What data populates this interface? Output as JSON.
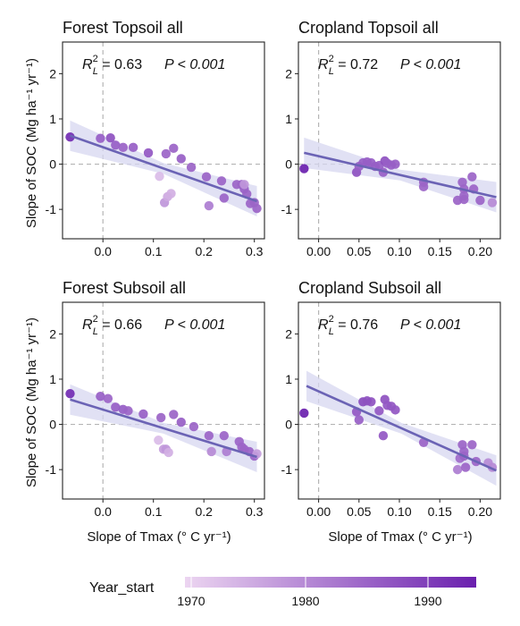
{
  "figure": {
    "ylabel": "Slope of SOC (Mg ha⁻¹ yr⁻¹)",
    "xlabel": "Slope of Tmax (° C yr⁻¹)",
    "legend": {
      "title": "Year_start",
      "ticks": [
        "1970",
        "1980",
        "1990"
      ],
      "range": [
        1966,
        1995
      ],
      "color_low": "#ecd5f1",
      "color_high": "#6a1fae"
    }
  },
  "chart_data": [
    {
      "type": "scatter",
      "title": "Forest Topsoil all",
      "r2_label": "0.63",
      "p_label": "P < 0.001",
      "xlim": [
        -0.08,
        0.32
      ],
      "ylim": [
        -1.65,
        2.7
      ],
      "xticks": [
        "0.0",
        "0.1",
        "0.2",
        "0.3"
      ],
      "yticks": [
        "-1",
        "0",
        "1",
        "2"
      ],
      "fit": {
        "x": [
          -0.065,
          0.305
        ],
        "y": [
          0.63,
          -0.82
        ]
      },
      "points": [
        {
          "x": -0.065,
          "y": 0.6,
          "year": 1993
        },
        {
          "x": -0.005,
          "y": 0.57,
          "year": 1985
        },
        {
          "x": 0.015,
          "y": 0.58,
          "year": 1987
        },
        {
          "x": 0.025,
          "y": 0.42,
          "year": 1985
        },
        {
          "x": 0.04,
          "y": 0.37,
          "year": 1984
        },
        {
          "x": 0.06,
          "y": 0.37,
          "year": 1985
        },
        {
          "x": 0.09,
          "y": 0.25,
          "year": 1986
        },
        {
          "x": 0.112,
          "y": -0.27,
          "year": 1970
        },
        {
          "x": 0.122,
          "y": -0.85,
          "year": 1976
        },
        {
          "x": 0.125,
          "y": 0.23,
          "year": 1984
        },
        {
          "x": 0.128,
          "y": -0.72,
          "year": 1973
        },
        {
          "x": 0.135,
          "y": -0.65,
          "year": 1972
        },
        {
          "x": 0.14,
          "y": 0.35,
          "year": 1984
        },
        {
          "x": 0.155,
          "y": 0.12,
          "year": 1985
        },
        {
          "x": 0.175,
          "y": -0.07,
          "year": 1984
        },
        {
          "x": 0.205,
          "y": -0.28,
          "year": 1984
        },
        {
          "x": 0.21,
          "y": -0.92,
          "year": 1980
        },
        {
          "x": 0.235,
          "y": -0.37,
          "year": 1984
        },
        {
          "x": 0.24,
          "y": -0.75,
          "year": 1984
        },
        {
          "x": 0.265,
          "y": -0.45,
          "year": 1984
        },
        {
          "x": 0.275,
          "y": -0.45,
          "year": 1984
        },
        {
          "x": 0.28,
          "y": -0.55,
          "year": 1985
        },
        {
          "x": 0.28,
          "y": -0.45,
          "year": 1976
        },
        {
          "x": 0.285,
          "y": -0.66,
          "year": 1984
        },
        {
          "x": 0.292,
          "y": -0.87,
          "year": 1984
        },
        {
          "x": 0.3,
          "y": -0.85,
          "year": 1984
        },
        {
          "x": 0.305,
          "y": -0.98,
          "year": 1984
        }
      ]
    },
    {
      "type": "scatter",
      "title": "Cropland Topsoil all",
      "r2_label": "0.72",
      "p_label": "P < 0.001",
      "xlim": [
        -0.025,
        0.225
      ],
      "ylim": [
        -1.65,
        2.7
      ],
      "xticks": [
        "0.00",
        "0.05",
        "0.10",
        "0.15",
        "0.20"
      ],
      "yticks": [
        "-1",
        "0",
        "1",
        "2"
      ],
      "fit": {
        "x": [
          -0.018,
          0.22
        ],
        "y": [
          0.25,
          -0.73
        ]
      },
      "points": [
        {
          "x": -0.018,
          "y": -0.1,
          "year": 1995
        },
        {
          "x": 0.047,
          "y": -0.18,
          "year": 1987
        },
        {
          "x": 0.05,
          "y": -0.05,
          "year": 1985
        },
        {
          "x": 0.055,
          "y": 0.03,
          "year": 1985
        },
        {
          "x": 0.06,
          "y": 0.05,
          "year": 1985
        },
        {
          "x": 0.065,
          "y": 0.03,
          "year": 1985
        },
        {
          "x": 0.07,
          "y": -0.05,
          "year": 1985
        },
        {
          "x": 0.075,
          "y": -0.03,
          "year": 1985
        },
        {
          "x": 0.08,
          "y": -0.18,
          "year": 1985
        },
        {
          "x": 0.082,
          "y": 0.07,
          "year": 1987
        },
        {
          "x": 0.085,
          "y": 0.02,
          "year": 1985
        },
        {
          "x": 0.09,
          "y": -0.02,
          "year": 1985
        },
        {
          "x": 0.095,
          "y": 0.0,
          "year": 1985
        },
        {
          "x": 0.13,
          "y": -0.4,
          "year": 1984
        },
        {
          "x": 0.13,
          "y": -0.5,
          "year": 1984
        },
        {
          "x": 0.172,
          "y": -0.8,
          "year": 1984
        },
        {
          "x": 0.178,
          "y": -0.4,
          "year": 1984
        },
        {
          "x": 0.18,
          "y": -0.55,
          "year": 1984
        },
        {
          "x": 0.18,
          "y": -0.7,
          "year": 1984
        },
        {
          "x": 0.18,
          "y": -0.78,
          "year": 1984
        },
        {
          "x": 0.19,
          "y": -0.28,
          "year": 1984
        },
        {
          "x": 0.192,
          "y": -0.55,
          "year": 1984
        },
        {
          "x": 0.2,
          "y": -0.8,
          "year": 1984
        },
        {
          "x": 0.215,
          "y": -0.85,
          "year": 1978
        }
      ]
    },
    {
      "type": "scatter",
      "title": "Forest Subsoil all",
      "r2_label": "0.66",
      "p_label": "P < 0.001",
      "xlim": [
        -0.08,
        0.32
      ],
      "ylim": [
        -1.65,
        2.7
      ],
      "xticks": [
        "0.0",
        "0.1",
        "0.2",
        "0.3"
      ],
      "yticks": [
        "-1",
        "0",
        "1",
        "2"
      ],
      "fit": {
        "x": [
          -0.065,
          0.305
        ],
        "y": [
          0.55,
          -0.72
        ]
      },
      "points": [
        {
          "x": -0.065,
          "y": 0.68,
          "year": 1993
        },
        {
          "x": -0.005,
          "y": 0.62,
          "year": 1985
        },
        {
          "x": 0.01,
          "y": 0.57,
          "year": 1984
        },
        {
          "x": 0.025,
          "y": 0.38,
          "year": 1985
        },
        {
          "x": 0.04,
          "y": 0.33,
          "year": 1985
        },
        {
          "x": 0.05,
          "y": 0.3,
          "year": 1984
        },
        {
          "x": 0.08,
          "y": 0.23,
          "year": 1985
        },
        {
          "x": 0.11,
          "y": -0.35,
          "year": 1970
        },
        {
          "x": 0.115,
          "y": 0.15,
          "year": 1984
        },
        {
          "x": 0.12,
          "y": -0.55,
          "year": 1975
        },
        {
          "x": 0.125,
          "y": -0.55,
          "year": 1976
        },
        {
          "x": 0.13,
          "y": -0.62,
          "year": 1972
        },
        {
          "x": 0.14,
          "y": 0.22,
          "year": 1984
        },
        {
          "x": 0.155,
          "y": 0.05,
          "year": 1985
        },
        {
          "x": 0.18,
          "y": -0.05,
          "year": 1984
        },
        {
          "x": 0.21,
          "y": -0.25,
          "year": 1984
        },
        {
          "x": 0.215,
          "y": -0.6,
          "year": 1978
        },
        {
          "x": 0.24,
          "y": -0.25,
          "year": 1984
        },
        {
          "x": 0.245,
          "y": -0.6,
          "year": 1980
        },
        {
          "x": 0.27,
          "y": -0.38,
          "year": 1984
        },
        {
          "x": 0.275,
          "y": -0.5,
          "year": 1984
        },
        {
          "x": 0.28,
          "y": -0.55,
          "year": 1984
        },
        {
          "x": 0.29,
          "y": -0.6,
          "year": 1984
        },
        {
          "x": 0.3,
          "y": -0.7,
          "year": 1984
        },
        {
          "x": 0.305,
          "y": -0.65,
          "year": 1975
        }
      ]
    },
    {
      "type": "scatter",
      "title": "Cropland Subsoil all",
      "r2_label": "0.76",
      "p_label": "P < 0.001",
      "xlim": [
        -0.025,
        0.225
      ],
      "ylim": [
        -1.65,
        2.7
      ],
      "xticks": [
        "0.00",
        "0.05",
        "0.10",
        "0.15",
        "0.20"
      ],
      "yticks": [
        "-1",
        "0",
        "1",
        "2"
      ],
      "fit": {
        "x": [
          -0.015,
          0.22
        ],
        "y": [
          0.85,
          -1.02
        ]
      },
      "points": [
        {
          "x": -0.018,
          "y": 0.25,
          "year": 1995
        },
        {
          "x": 0.047,
          "y": 0.28,
          "year": 1986
        },
        {
          "x": 0.05,
          "y": 0.1,
          "year": 1985
        },
        {
          "x": 0.055,
          "y": 0.5,
          "year": 1988
        },
        {
          "x": 0.06,
          "y": 0.52,
          "year": 1987
        },
        {
          "x": 0.065,
          "y": 0.5,
          "year": 1987
        },
        {
          "x": 0.075,
          "y": 0.3,
          "year": 1986
        },
        {
          "x": 0.08,
          "y": -0.25,
          "year": 1986
        },
        {
          "x": 0.082,
          "y": 0.55,
          "year": 1987
        },
        {
          "x": 0.085,
          "y": 0.42,
          "year": 1986
        },
        {
          "x": 0.09,
          "y": 0.4,
          "year": 1986
        },
        {
          "x": 0.095,
          "y": 0.32,
          "year": 1986
        },
        {
          "x": 0.13,
          "y": -0.4,
          "year": 1984
        },
        {
          "x": 0.172,
          "y": -1.0,
          "year": 1980
        },
        {
          "x": 0.175,
          "y": -0.75,
          "year": 1983
        },
        {
          "x": 0.178,
          "y": -0.45,
          "year": 1984
        },
        {
          "x": 0.18,
          "y": -0.6,
          "year": 1984
        },
        {
          "x": 0.18,
          "y": -0.7,
          "year": 1984
        },
        {
          "x": 0.182,
          "y": -0.95,
          "year": 1984
        },
        {
          "x": 0.19,
          "y": -0.45,
          "year": 1984
        },
        {
          "x": 0.195,
          "y": -0.82,
          "year": 1984
        },
        {
          "x": 0.21,
          "y": -0.85,
          "year": 1978
        },
        {
          "x": 0.215,
          "y": -0.95,
          "year": 1978
        }
      ]
    }
  ]
}
